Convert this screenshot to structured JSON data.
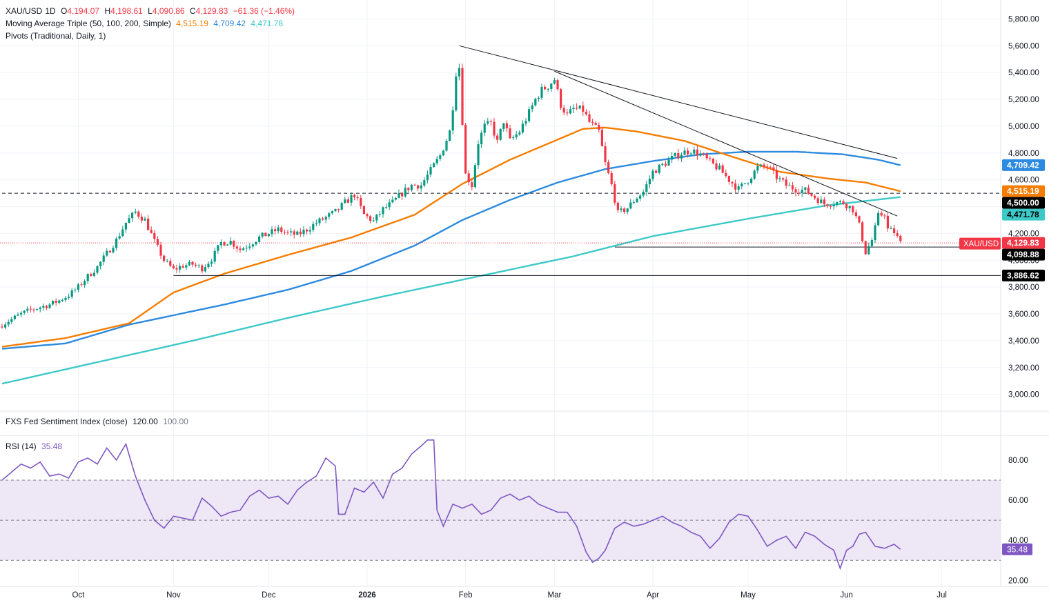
{
  "header": {
    "symbol": "XAU/USD",
    "timeframe": "1D",
    "open_label": "O",
    "open": "4,194.07",
    "high_label": "H",
    "high": "4,198.61",
    "low_label": "L",
    "low": "4,090.86",
    "close_label": "C",
    "close": "4,129.83",
    "change": "−61.36 (−1.46%)",
    "ma_title": "Moving Average Triple (50, 100, 200, Simple)",
    "ma50": "4,515.19",
    "ma100": "4,709.42",
    "ma200": "4,471.78",
    "pivots_title": "Pivots (Traditional, Daily, 1)"
  },
  "sentiment": {
    "title": "FXS Fed Sentiment Index (close)",
    "value": "120.00",
    "value2": "100.00"
  },
  "rsi": {
    "title": "RSI (14)",
    "value": "35.48"
  },
  "colors": {
    "up": "#089981",
    "down": "#f23645",
    "ma50": "#f57c00",
    "ma100": "#2c8ae0",
    "ma200": "#3dc9c7",
    "rsi": "#7e57c2",
    "rsi_band": "#ede7f6",
    "price_line": "#f23645"
  },
  "price_tags": [
    {
      "text": "4,709.42",
      "bg": "#2c8ae0",
      "fg": "#ffffff",
      "value": 4709.42
    },
    {
      "text": "4,515.19",
      "bg": "#f57c00",
      "fg": "#ffffff",
      "value": 4515.19
    },
    {
      "text": "4,500.00",
      "bg": "#000000",
      "fg": "#ffffff",
      "value": 4500
    },
    {
      "text": "4,471.78",
      "bg": "#3dc9c7",
      "fg": "#000000",
      "value": 4471.78
    },
    {
      "text": "4,129.83",
      "bg": "#f23645",
      "fg": "#ffffff",
      "value": 4129.83
    },
    {
      "text": "4,098.88",
      "bg": "#000000",
      "fg": "#ffffff",
      "value": 4098.88
    },
    {
      "text": "3,886.62",
      "bg": "#000000",
      "fg": "#ffffff",
      "value": 3886.62
    }
  ],
  "symbol_tag": "XAU/USD",
  "rsi_tag": {
    "text": "35.48",
    "value": 35.48
  },
  "chart_data": {
    "type": "candlestick",
    "x_ticks": [
      {
        "label": "Oct",
        "day": 24
      },
      {
        "label": "Nov",
        "day": 54
      },
      {
        "label": "Dec",
        "day": 84
      },
      {
        "label": "2026",
        "day": 115,
        "bold": true
      },
      {
        "label": "Feb",
        "day": 146
      },
      {
        "label": "Mar",
        "day": 174
      },
      {
        "label": "Apr",
        "day": 205
      },
      {
        "label": "May",
        "day": 235
      },
      {
        "label": "Jun",
        "day": 266
      },
      {
        "label": "Jul",
        "day": 296
      }
    ],
    "y_ticks": [
      "5,800.00",
      "5,600.00",
      "5,400.00",
      "5,200.00",
      "5,000.00",
      "4,800.00",
      "4,600.00",
      "4,400.00",
      "4,200.00",
      "4,000.00",
      "3,800.00",
      "3,600.00",
      "3,400.00",
      "3,200.00",
      "3,000.00"
    ],
    "y_values": [
      5800,
      5600,
      5400,
      5200,
      5000,
      4800,
      4600,
      4400,
      4200,
      4000,
      3800,
      3600,
      3400,
      3200,
      3000
    ],
    "ylim": [
      2880,
      5900
    ],
    "rsi_ticks": [
      "80.00",
      "60.00",
      "40.00",
      "20.00"
    ],
    "rsi_values": [
      80,
      60,
      40,
      20
    ],
    "rsi_ylim": [
      17,
      92
    ],
    "rsi_band": [
      30,
      70
    ],
    "rsi_mid": 50,
    "pivot_levels": [
      {
        "value": 4500,
        "style": "dashed",
        "from_day": 0
      },
      {
        "value": 4098.88,
        "style": "solid",
        "from_day": 193
      },
      {
        "value": 3886.62,
        "style": "solid",
        "from_day": 54
      }
    ],
    "trendlines": [
      {
        "d1": 144,
        "v1": 5600,
        "d2": 282,
        "v2": 4760
      },
      {
        "d1": 174,
        "v1": 5410,
        "d2": 282,
        "v2": 4330
      }
    ],
    "price_anchors": [
      [
        0,
        3520
      ],
      [
        3,
        3560
      ],
      [
        6,
        3600
      ],
      [
        9,
        3630
      ],
      [
        12,
        3650
      ],
      [
        15,
        3670
      ],
      [
        18,
        3700
      ],
      [
        21,
        3740
      ],
      [
        24,
        3800
      ],
      [
        27,
        3880
      ],
      [
        30,
        3950
      ],
      [
        33,
        4050
      ],
      [
        36,
        4150
      ],
      [
        39,
        4280
      ],
      [
        42,
        4360
      ],
      [
        45,
        4300
      ],
      [
        48,
        4140
      ],
      [
        51,
        4000
      ],
      [
        54,
        3930
      ],
      [
        57,
        3960
      ],
      [
        60,
        3970
      ],
      [
        63,
        3940
      ],
      [
        66,
        4010
      ],
      [
        69,
        4130
      ],
      [
        72,
        4140
      ],
      [
        75,
        4080
      ],
      [
        78,
        4120
      ],
      [
        81,
        4170
      ],
      [
        84,
        4200
      ],
      [
        87,
        4230
      ],
      [
        90,
        4200
      ],
      [
        93,
        4190
      ],
      [
        96,
        4230
      ],
      [
        99,
        4280
      ],
      [
        102,
        4320
      ],
      [
        105,
        4360
      ],
      [
        108,
        4430
      ],
      [
        111,
        4490
      ],
      [
        114,
        4340
      ],
      [
        117,
        4290
      ],
      [
        120,
        4380
      ],
      [
        123,
        4430
      ],
      [
        126,
        4500
      ],
      [
        129,
        4560
      ],
      [
        132,
        4560
      ],
      [
        135,
        4670
      ],
      [
        138,
        4780
      ],
      [
        141,
        4960
      ],
      [
        142,
        5150
      ],
      [
        143,
        5400
      ],
      [
        144,
        5440
      ],
      [
        146,
        4640
      ],
      [
        148,
        4560
      ],
      [
        150,
        4880
      ],
      [
        152,
        5000
      ],
      [
        154,
        5020
      ],
      [
        156,
        4880
      ],
      [
        158,
        5040
      ],
      [
        160,
        4890
      ],
      [
        163,
        4960
      ],
      [
        166,
        5100
      ],
      [
        168,
        5200
      ],
      [
        170,
        5270
      ],
      [
        172,
        5300
      ],
      [
        174,
        5350
      ],
      [
        176,
        5160
      ],
      [
        178,
        5080
      ],
      [
        180,
        5130
      ],
      [
        183,
        5120
      ],
      [
        185,
        5030
      ],
      [
        188,
        4960
      ],
      [
        190,
        4720
      ],
      [
        192,
        4560
      ],
      [
        194,
        4350
      ],
      [
        197,
        4390
      ],
      [
        200,
        4470
      ],
      [
        202,
        4510
      ],
      [
        205,
        4660
      ],
      [
        208,
        4710
      ],
      [
        211,
        4760
      ],
      [
        214,
        4800
      ],
      [
        217,
        4820
      ],
      [
        220,
        4790
      ],
      [
        223,
        4730
      ],
      [
        226,
        4680
      ],
      [
        229,
        4600
      ],
      [
        232,
        4530
      ],
      [
        235,
        4600
      ],
      [
        238,
        4690
      ],
      [
        241,
        4700
      ],
      [
        244,
        4620
      ],
      [
        247,
        4560
      ],
      [
        250,
        4530
      ],
      [
        253,
        4520
      ],
      [
        256,
        4470
      ],
      [
        259,
        4420
      ],
      [
        262,
        4430
      ],
      [
        265,
        4430
      ],
      [
        268,
        4380
      ],
      [
        270,
        4260
      ],
      [
        272,
        4060
      ],
      [
        274,
        4150
      ],
      [
        276,
        4330
      ],
      [
        278,
        4350
      ],
      [
        279,
        4230
      ],
      [
        281,
        4210
      ],
      [
        283,
        4130
      ]
    ],
    "ma50_anchors": [
      [
        0,
        3355
      ],
      [
        20,
        3420
      ],
      [
        40,
        3530
      ],
      [
        54,
        3760
      ],
      [
        70,
        3900
      ],
      [
        90,
        4040
      ],
      [
        110,
        4170
      ],
      [
        130,
        4340
      ],
      [
        145,
        4570
      ],
      [
        160,
        4750
      ],
      [
        175,
        4900
      ],
      [
        183,
        4980
      ],
      [
        190,
        4990
      ],
      [
        200,
        4960
      ],
      [
        215,
        4890
      ],
      [
        229,
        4780
      ],
      [
        245,
        4660
      ],
      [
        260,
        4610
      ],
      [
        272,
        4580
      ],
      [
        283,
        4515
      ]
    ],
    "ma100_anchors": [
      [
        0,
        3340
      ],
      [
        20,
        3380
      ],
      [
        40,
        3520
      ],
      [
        54,
        3590
      ],
      [
        70,
        3670
      ],
      [
        90,
        3780
      ],
      [
        110,
        3920
      ],
      [
        130,
        4110
      ],
      [
        145,
        4300
      ],
      [
        160,
        4450
      ],
      [
        175,
        4580
      ],
      [
        190,
        4680
      ],
      [
        205,
        4740
      ],
      [
        220,
        4790
      ],
      [
        235,
        4810
      ],
      [
        250,
        4810
      ],
      [
        265,
        4790
      ],
      [
        276,
        4750
      ],
      [
        283,
        4709
      ]
    ],
    "ma200_anchors": [
      [
        0,
        3080
      ],
      [
        30,
        3240
      ],
      [
        60,
        3400
      ],
      [
        90,
        3570
      ],
      [
        120,
        3730
      ],
      [
        150,
        3880
      ],
      [
        180,
        4030
      ],
      [
        205,
        4180
      ],
      [
        235,
        4310
      ],
      [
        260,
        4410
      ],
      [
        283,
        4471.78
      ]
    ],
    "rsi_anchors": [
      [
        0,
        70
      ],
      [
        3,
        74
      ],
      [
        6,
        78
      ],
      [
        9,
        76
      ],
      [
        12,
        79
      ],
      [
        15,
        72
      ],
      [
        18,
        73
      ],
      [
        21,
        71
      ],
      [
        24,
        79
      ],
      [
        27,
        81
      ],
      [
        30,
        78
      ],
      [
        33,
        86
      ],
      [
        36,
        80
      ],
      [
        39,
        88
      ],
      [
        42,
        72
      ],
      [
        45,
        60
      ],
      [
        48,
        50
      ],
      [
        51,
        46
      ],
      [
        54,
        52
      ],
      [
        57,
        51
      ],
      [
        60,
        50
      ],
      [
        63,
        61
      ],
      [
        66,
        57
      ],
      [
        69,
        52
      ],
      [
        72,
        54
      ],
      [
        75,
        55
      ],
      [
        78,
        62
      ],
      [
        81,
        65
      ],
      [
        84,
        61
      ],
      [
        87,
        62
      ],
      [
        90,
        58
      ],
      [
        93,
        65
      ],
      [
        96,
        69
      ],
      [
        99,
        72
      ],
      [
        102,
        81
      ],
      [
        105,
        77
      ],
      [
        106,
        53
      ],
      [
        108,
        53
      ],
      [
        111,
        66
      ],
      [
        114,
        64
      ],
      [
        117,
        69
      ],
      [
        120,
        61
      ],
      [
        123,
        73
      ],
      [
        126,
        76
      ],
      [
        129,
        83
      ],
      [
        132,
        87
      ],
      [
        134,
        90
      ],
      [
        136,
        90
      ],
      [
        137,
        55
      ],
      [
        139,
        47
      ],
      [
        142,
        58
      ],
      [
        145,
        56
      ],
      [
        148,
        58
      ],
      [
        151,
        53
      ],
      [
        154,
        55
      ],
      [
        157,
        61
      ],
      [
        160,
        63
      ],
      [
        163,
        60
      ],
      [
        166,
        62
      ],
      [
        169,
        58
      ],
      [
        172,
        56
      ],
      [
        175,
        54
      ],
      [
        178,
        54
      ],
      [
        181,
        47
      ],
      [
        184,
        34
      ],
      [
        186,
        29
      ],
      [
        188,
        31
      ],
      [
        190,
        35
      ],
      [
        193,
        46
      ],
      [
        196,
        49
      ],
      [
        199,
        47
      ],
      [
        202,
        48
      ],
      [
        205,
        50
      ],
      [
        208,
        52
      ],
      [
        211,
        49
      ],
      [
        214,
        47
      ],
      [
        217,
        44
      ],
      [
        220,
        42
      ],
      [
        223,
        36
      ],
      [
        226,
        41
      ],
      [
        229,
        49
      ],
      [
        232,
        53
      ],
      [
        235,
        52
      ],
      [
        238,
        45
      ],
      [
        241,
        37
      ],
      [
        244,
        40
      ],
      [
        247,
        42
      ],
      [
        250,
        36
      ],
      [
        253,
        44
      ],
      [
        256,
        42
      ],
      [
        259,
        38
      ],
      [
        262,
        35
      ],
      [
        264,
        26
      ],
      [
        266,
        35
      ],
      [
        268,
        37
      ],
      [
        270,
        43
      ],
      [
        272,
        44
      ],
      [
        275,
        37
      ],
      [
        278,
        36
      ],
      [
        281,
        38
      ],
      [
        283,
        35.48
      ]
    ]
  }
}
